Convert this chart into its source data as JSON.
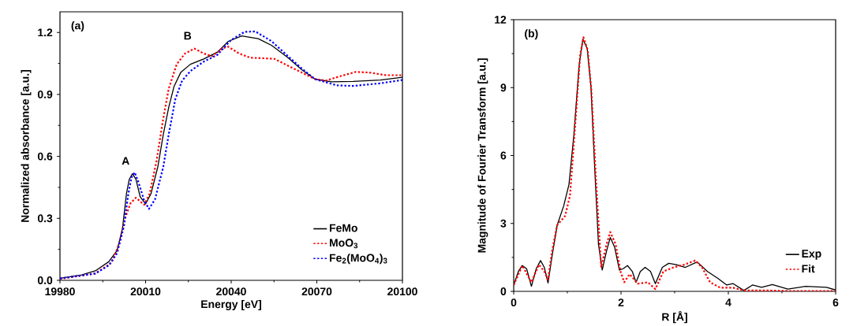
{
  "chart_data": [
    {
      "type": "line",
      "xlabel": "Energy [eV]",
      "ylabel": "Normalized absorbance [a.u.]",
      "xlim": [
        19980,
        20100
      ],
      "ylim": [
        0,
        1.3
      ],
      "xticks": [
        19980,
        20010,
        20040,
        20070,
        20100
      ],
      "yticks": [
        {
          "value": 0,
          "label": "0.0"
        },
        0.3,
        0.6,
        0.9,
        1.2
      ],
      "legend": "bottom right",
      "annotations": [
        "(a)",
        {
          "text": "A",
          "x": 20005.4,
          "y": 0.516
        },
        {
          "text": "B",
          "x": 20027.1,
          "y": 1.122
        }
      ],
      "series": [
        {
          "name": "FeMo",
          "color": "#000000",
          "line_style": "solid",
          "x": [
            19980,
            19987.6,
            19992.4,
            19997.1,
            20000,
            20001.9,
            20003.3,
            20004.3,
            20005.4,
            20006.6,
            20008.1,
            20010,
            20011.9,
            20014.3,
            20016.2,
            20018.1,
            20020,
            20022.3,
            20025.7,
            20030.4,
            20035.2,
            20039,
            20043.7,
            20049.5,
            20054.2,
            20059.9,
            20064.7,
            20069.4,
            20075.1,
            20082.8,
            20092.3,
            20100
          ],
          "values": [
            0.01,
            0.026,
            0.046,
            0.09,
            0.144,
            0.25,
            0.42,
            0.49,
            0.516,
            0.49,
            0.405,
            0.37,
            0.42,
            0.55,
            0.706,
            0.837,
            0.94,
            1.006,
            1.046,
            1.072,
            1.105,
            1.157,
            1.183,
            1.17,
            1.137,
            1.078,
            1.02,
            0.974,
            0.961,
            0.963,
            0.97,
            0.983
          ]
        },
        {
          "name": "MoO$_{3}$",
          "color": "#ff0000",
          "line_style": "dotted",
          "x": [
            19980,
            19992.4,
            19998.1,
            20000.9,
            20002.8,
            20004.7,
            20006.6,
            20009.5,
            20011.4,
            20013.8,
            20016.2,
            20018.1,
            20020.9,
            20023.8,
            20027.1,
            20030.4,
            20033.3,
            20037.1,
            20039,
            20042.8,
            20046.6,
            20051.4,
            20055.2,
            20059.9,
            20064.7,
            20069.4,
            20073.2,
            20077.9,
            20083.6,
            20088.4,
            20094.2,
            20100
          ],
          "values": [
            0.007,
            0.033,
            0.085,
            0.183,
            0.3,
            0.373,
            0.4,
            0.366,
            0.418,
            0.575,
            0.784,
            0.928,
            1.046,
            1.098,
            1.122,
            1.098,
            1.085,
            1.124,
            1.131,
            1.098,
            1.078,
            1.075,
            1.072,
            1.039,
            1.006,
            0.974,
            0.967,
            0.987,
            1.009,
            1.006,
            0.993,
            0.993
          ]
        },
        {
          "name": "Fe$_{2}$(MoO$_{4}$)$_{3}$",
          "color": "#0000ff",
          "line_style": "dotted",
          "x": [
            19980,
            19992.4,
            19997.1,
            20000,
            20002.4,
            20003.8,
            20005,
            20006.2,
            20007.6,
            20009.5,
            20011.2,
            20013.3,
            20016.2,
            20018.1,
            20020.4,
            20022.8,
            20025.7,
            20030.4,
            20035.2,
            20039.9,
            20044.7,
            20048.5,
            20054.2,
            20059.9,
            20064.7,
            20069.4,
            20077,
            20082.8,
            20092.3,
            20100
          ],
          "values": [
            0.009,
            0.033,
            0.072,
            0.131,
            0.261,
            0.405,
            0.497,
            0.523,
            0.471,
            0.386,
            0.346,
            0.392,
            0.549,
            0.706,
            0.876,
            0.967,
            1.013,
            1.059,
            1.092,
            1.163,
            1.203,
            1.205,
            1.157,
            1.085,
            1.026,
            0.974,
            0.944,
            0.941,
            0.954,
            0.97
          ]
        }
      ]
    },
    {
      "type": "line",
      "xlabel": "R [Å]",
      "ylabel": "Magnitude of Fourier Transform [a.u.]",
      "xlim": [
        0,
        6
      ],
      "ylim": [
        0,
        12
      ],
      "xticks": [
        0,
        2,
        4,
        6
      ],
      "yticks": [
        0,
        3,
        6,
        9,
        12
      ],
      "legend": "bottom right",
      "annotations": [
        "(b)"
      ],
      "series": [
        {
          "name": "Exp",
          "color": "#000000",
          "line_style": "solid",
          "x": [
            0,
            0.087,
            0.16,
            0.24,
            0.33,
            0.42,
            0.5,
            0.57,
            0.64,
            0.71,
            0.81,
            0.93,
            1.03,
            1.12,
            1.22,
            1.29,
            1.37,
            1.44,
            1.51,
            1.58,
            1.65,
            1.73,
            1.8,
            1.88,
            1.97,
            2.04,
            2.12,
            2.21,
            2.28,
            2.36,
            2.45,
            2.55,
            2.64,
            2.77,
            2.89,
            3.03,
            3.2,
            3.42,
            3.61,
            3.8,
            3.97,
            4.09,
            4.29,
            4.45,
            4.62,
            4.82,
            5.11,
            5.44,
            5.83,
            6.0
          ],
          "values": [
            0.28,
            0.88,
            1.14,
            1.0,
            0.22,
            1.0,
            1.36,
            1.06,
            0.37,
            1.48,
            2.92,
            3.76,
            4.72,
            6.88,
            10.0,
            11.14,
            10.72,
            9.04,
            5.44,
            2.08,
            0.94,
            1.78,
            2.38,
            1.96,
            0.94,
            1.0,
            1.14,
            0.88,
            0.4,
            0.88,
            1.06,
            0.88,
            0.34,
            1.06,
            1.24,
            1.18,
            1.06,
            1.3,
            0.88,
            0.58,
            0.28,
            0.34,
            0.04,
            0.28,
            0.18,
            0.3,
            0.1,
            0.22,
            0.18,
            0.06
          ]
        },
        {
          "name": "Fit",
          "color": "#ff0000",
          "line_style": "dotted",
          "x": [
            0,
            0.16,
            0.33,
            0.47,
            0.57,
            0.64,
            0.71,
            0.81,
            0.96,
            1.05,
            1.15,
            1.24,
            1.3,
            1.38,
            1.45,
            1.53,
            1.63,
            1.73,
            1.8,
            1.9,
            1.99,
            2.06,
            2.16,
            2.31,
            2.5,
            2.64,
            2.79,
            2.98,
            3.18,
            3.38,
            3.51,
            3.66,
            3.85,
            4.09,
            4.29,
            4.73,
            5.2,
            6.0
          ],
          "values": [
            0.28,
            1.14,
            0.4,
            1.18,
            0.88,
            0.52,
            1.72,
            2.92,
            3.34,
            4.24,
            7.48,
            10.48,
            11.22,
            10.66,
            8.8,
            5.08,
            1.06,
            2.08,
            2.62,
            2.08,
            0.88,
            0.4,
            0.76,
            0.34,
            0.4,
            0.1,
            0.88,
            1.06,
            1.18,
            1.36,
            1.06,
            0.4,
            0.16,
            0.16,
            0.04,
            0.04,
            0.01,
            0.01
          ]
        }
      ]
    }
  ]
}
